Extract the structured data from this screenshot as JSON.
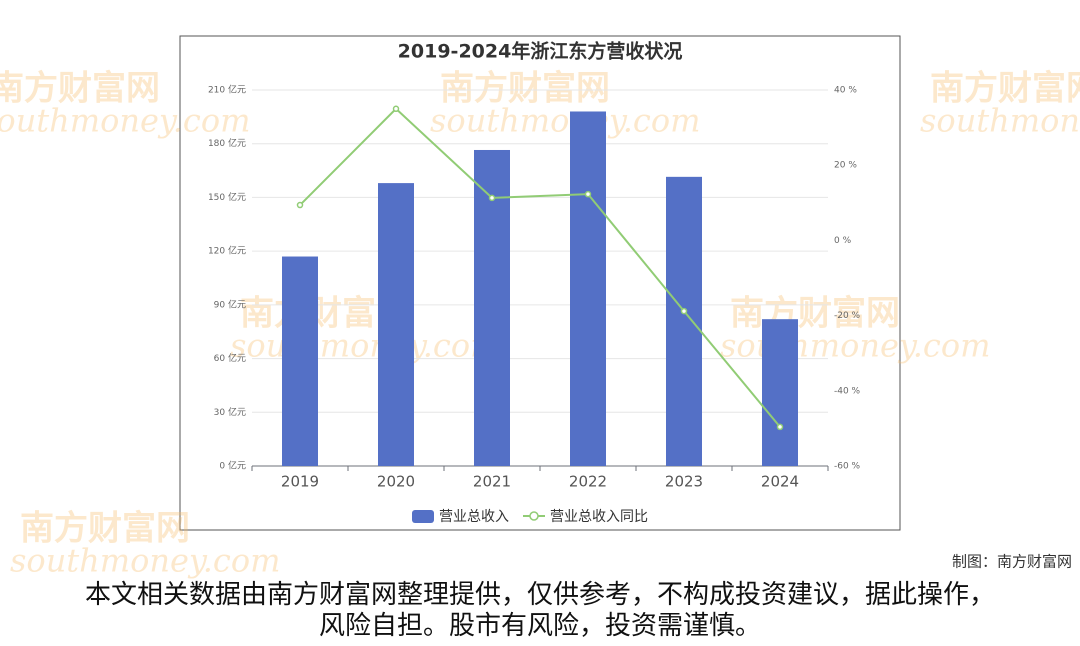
{
  "chart_data": {
    "type": "bar",
    "title": "2019-2024年浙江东方营收状况",
    "categories": [
      "2019",
      "2020",
      "2021",
      "2022",
      "2023",
      "2024"
    ],
    "series": [
      {
        "name": "营业总收入",
        "color": "#5470c6",
        "type": "bar",
        "values": [
          117,
          158,
          176.5,
          198,
          161.5,
          82
        ]
      },
      {
        "name": "营业总收入同比",
        "color": "#91cc75",
        "type": "line",
        "axis": "y2",
        "values": [
          9.4,
          35,
          11.3,
          12.3,
          -18.8,
          -49.6
        ]
      }
    ],
    "ylim": [
      0,
      210
    ],
    "yticks": [
      {
        "value": 0,
        "label": "0 亿元"
      },
      {
        "value": 30,
        "label": "30 亿元"
      },
      {
        "value": 60,
        "label": "60 亿元"
      },
      {
        "value": 90,
        "label": "90 亿元"
      },
      {
        "value": 120,
        "label": "120 亿元"
      },
      {
        "value": 150,
        "label": "150 亿元"
      },
      {
        "value": 180,
        "label": "180 亿元"
      },
      {
        "value": 210,
        "label": "210 亿元"
      }
    ],
    "y2lim": [
      -60,
      40
    ],
    "y2ticks": [
      {
        "value": -60,
        "label": "-60 %"
      },
      {
        "value": -40,
        "label": "-40 %"
      },
      {
        "value": -20,
        "label": "-20 %"
      },
      {
        "value": 0,
        "label": "0 %"
      },
      {
        "value": 20,
        "label": "20 %"
      },
      {
        "value": 40,
        "label": "40 %"
      }
    ],
    "grid": true
  },
  "watermark": {
    "cn": "南方财富网",
    "en": "southmoney.com"
  },
  "footer": {
    "credit": "制图：南方财富网",
    "disclaimer": "本文相关数据由南方财富网整理提供，仅供参考，不构成投资建议，据此操作，风险自担。股市有风险，投资需谨慎。"
  }
}
